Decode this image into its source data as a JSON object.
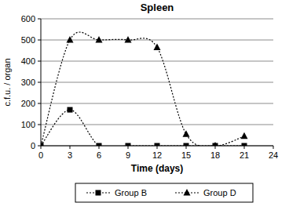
{
  "chart_data": {
    "type": "line",
    "title": "Spleen",
    "x_label": "Time (days)",
    "y_label": "c.f.u. / organ",
    "x": [
      0,
      3,
      6,
      9,
      12,
      15,
      18,
      21
    ],
    "series": [
      {
        "name": "Group B",
        "color": "#000000",
        "marker": "square",
        "line_style": "dotted",
        "values": [
          0,
          170,
          0,
          0,
          0,
          0,
          0,
          0
        ]
      },
      {
        "name": "Group D",
        "color": "#000000",
        "marker": "triangle",
        "line_style": "dotted",
        "values": [
          0,
          500,
          500,
          500,
          465,
          55,
          0,
          45
        ]
      }
    ],
    "xlim": [
      0,
      24
    ],
    "xticks": [
      0,
      3,
      6,
      9,
      12,
      15,
      18,
      21,
      24
    ],
    "ylim": [
      0,
      600
    ],
    "yticks": [
      0,
      100,
      200,
      300,
      400,
      500,
      600
    ],
    "grid": true,
    "legend": "bottom"
  }
}
